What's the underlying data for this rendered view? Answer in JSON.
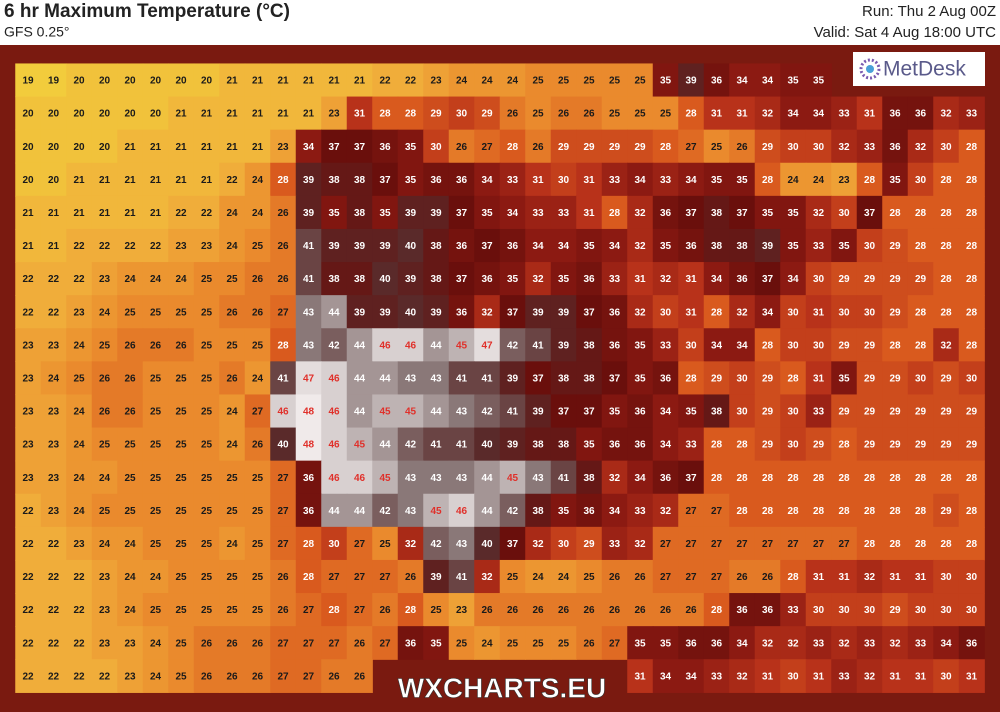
{
  "header": {
    "title": "6 hr Maximum Temperature (°C)",
    "subtitle": "GFS 0.25°",
    "run": "Run: Thu 2 Aug 00Z",
    "valid": "Valid: Sat 4 Aug 18:00 UTC"
  },
  "logo": "MetDesk",
  "watermark": "WXCHARTS.EU",
  "grid": {
    "rows": [
      [
        19,
        19,
        20,
        20,
        20,
        20,
        20,
        20,
        21,
        21,
        21,
        21,
        21,
        21,
        22,
        22,
        23,
        24,
        24,
        24,
        25,
        25,
        25,
        25,
        25,
        35,
        39,
        36,
        34,
        34,
        35,
        35,
        null,
        null,
        null,
        null,
        null,
        null
      ],
      [
        20,
        20,
        20,
        20,
        20,
        20,
        21,
        21,
        21,
        21,
        21,
        21,
        23,
        31,
        28,
        28,
        29,
        30,
        29,
        26,
        25,
        26,
        26,
        25,
        25,
        25,
        28,
        31,
        31,
        32,
        34,
        34,
        33,
        31,
        36,
        36,
        32,
        33
      ],
      [
        20,
        20,
        20,
        20,
        21,
        21,
        21,
        21,
        21,
        21,
        23,
        34,
        37,
        37,
        36,
        35,
        30,
        26,
        27,
        28,
        26,
        29,
        29,
        29,
        29,
        28,
        27,
        25,
        26,
        29,
        30,
        30,
        32,
        33,
        36,
        32,
        30,
        28
      ],
      [
        20,
        20,
        21,
        21,
        21,
        21,
        21,
        21,
        22,
        24,
        28,
        39,
        38,
        38,
        37,
        35,
        36,
        36,
        34,
        33,
        31,
        30,
        31,
        33,
        34,
        33,
        34,
        35,
        35,
        28,
        24,
        24,
        23,
        28,
        35,
        30,
        28,
        28
      ],
      [
        21,
        21,
        21,
        21,
        21,
        21,
        22,
        22,
        24,
        24,
        26,
        39,
        35,
        38,
        35,
        39,
        39,
        37,
        35,
        34,
        33,
        33,
        31,
        28,
        32,
        36,
        37,
        38,
        37,
        35,
        35,
        32,
        30,
        37,
        28,
        28,
        28,
        28
      ],
      [
        21,
        21,
        22,
        22,
        22,
        22,
        23,
        23,
        24,
        25,
        26,
        41,
        39,
        39,
        39,
        40,
        38,
        36,
        37,
        36,
        34,
        34,
        35,
        34,
        32,
        35,
        36,
        38,
        38,
        39,
        35,
        33,
        35,
        30,
        29,
        28,
        28,
        28
      ],
      [
        22,
        22,
        22,
        23,
        24,
        24,
        24,
        25,
        25,
        26,
        26,
        41,
        38,
        38,
        40,
        39,
        38,
        37,
        36,
        35,
        32,
        35,
        36,
        33,
        31,
        32,
        31,
        34,
        36,
        37,
        34,
        30,
        29,
        29,
        29,
        29,
        28,
        28
      ],
      [
        22,
        22,
        23,
        24,
        25,
        25,
        25,
        25,
        26,
        26,
        27,
        43,
        44,
        39,
        39,
        40,
        39,
        36,
        32,
        37,
        39,
        39,
        37,
        36,
        32,
        30,
        31,
        28,
        32,
        34,
        30,
        31,
        30,
        30,
        29,
        28,
        28,
        28
      ],
      [
        23,
        23,
        24,
        25,
        26,
        26,
        26,
        25,
        25,
        25,
        28,
        43,
        42,
        44,
        46,
        46,
        44,
        45,
        47,
        42,
        41,
        39,
        38,
        36,
        35,
        33,
        30,
        34,
        34,
        28,
        30,
        30,
        29,
        29,
        28,
        28,
        32,
        28
      ],
      [
        23,
        24,
        25,
        26,
        26,
        25,
        25,
        25,
        26,
        24,
        41,
        47,
        46,
        44,
        44,
        43,
        43,
        41,
        41,
        39,
        37,
        38,
        38,
        37,
        35,
        36,
        28,
        29,
        30,
        29,
        28,
        31,
        35,
        29,
        29,
        30,
        29,
        30
      ],
      [
        23,
        23,
        24,
        26,
        26,
        25,
        25,
        25,
        24,
        27,
        46,
        48,
        46,
        44,
        45,
        45,
        44,
        43,
        42,
        41,
        39,
        37,
        37,
        35,
        36,
        34,
        35,
        38,
        30,
        29,
        30,
        33,
        29,
        29,
        29,
        29,
        29,
        29
      ],
      [
        23,
        23,
        24,
        25,
        25,
        25,
        25,
        25,
        24,
        26,
        40,
        48,
        46,
        45,
        44,
        42,
        41,
        41,
        40,
        39,
        38,
        38,
        35,
        36,
        36,
        34,
        33,
        28,
        28,
        29,
        30,
        29,
        28,
        29,
        29,
        29,
        29,
        29
      ],
      [
        23,
        23,
        24,
        24,
        25,
        25,
        25,
        25,
        25,
        25,
        27,
        36,
        46,
        46,
        45,
        43,
        43,
        43,
        44,
        45,
        43,
        41,
        38,
        32,
        34,
        36,
        37,
        28,
        28,
        28,
        28,
        28,
        28,
        28,
        28,
        28,
        28,
        28
      ],
      [
        22,
        23,
        24,
        25,
        25,
        25,
        25,
        25,
        25,
        25,
        27,
        36,
        44,
        44,
        42,
        43,
        45,
        46,
        44,
        42,
        38,
        35,
        36,
        34,
        33,
        32,
        27,
        27,
        28,
        28,
        28,
        28,
        28,
        28,
        28,
        28,
        29,
        28
      ],
      [
        22,
        22,
        23,
        24,
        24,
        25,
        25,
        25,
        24,
        25,
        27,
        28,
        30,
        27,
        25,
        32,
        42,
        43,
        40,
        37,
        32,
        30,
        29,
        33,
        32,
        27,
        27,
        27,
        27,
        27,
        27,
        27,
        27,
        28,
        28,
        28,
        28,
        28
      ],
      [
        22,
        22,
        22,
        23,
        24,
        24,
        25,
        25,
        25,
        25,
        26,
        28,
        27,
        27,
        27,
        26,
        39,
        41,
        32,
        25,
        24,
        24,
        25,
        26,
        26,
        27,
        27,
        27,
        26,
        26,
        28,
        31,
        31,
        32,
        31,
        31,
        30,
        30
      ],
      [
        22,
        22,
        22,
        23,
        24,
        25,
        25,
        25,
        25,
        25,
        26,
        27,
        28,
        27,
        26,
        28,
        25,
        23,
        26,
        26,
        26,
        26,
        26,
        26,
        26,
        26,
        26,
        28,
        36,
        36,
        33,
        30,
        30,
        30,
        29,
        30,
        30,
        30
      ],
      [
        22,
        22,
        22,
        23,
        23,
        24,
        25,
        26,
        26,
        26,
        27,
        27,
        27,
        26,
        27,
        36,
        35,
        25,
        24,
        25,
        25,
        25,
        26,
        27,
        35,
        35,
        36,
        36,
        34,
        32,
        32,
        33,
        32,
        33,
        32,
        33,
        34,
        36
      ],
      [
        22,
        22,
        22,
        22,
        23,
        24,
        25,
        26,
        26,
        26,
        27,
        27,
        26,
        26,
        null,
        null,
        null,
        null,
        null,
        null,
        null,
        null,
        null,
        null,
        31,
        34,
        34,
        33,
        32,
        31,
        30,
        31,
        33,
        32,
        31,
        31,
        30,
        31
      ]
    ]
  }
}
